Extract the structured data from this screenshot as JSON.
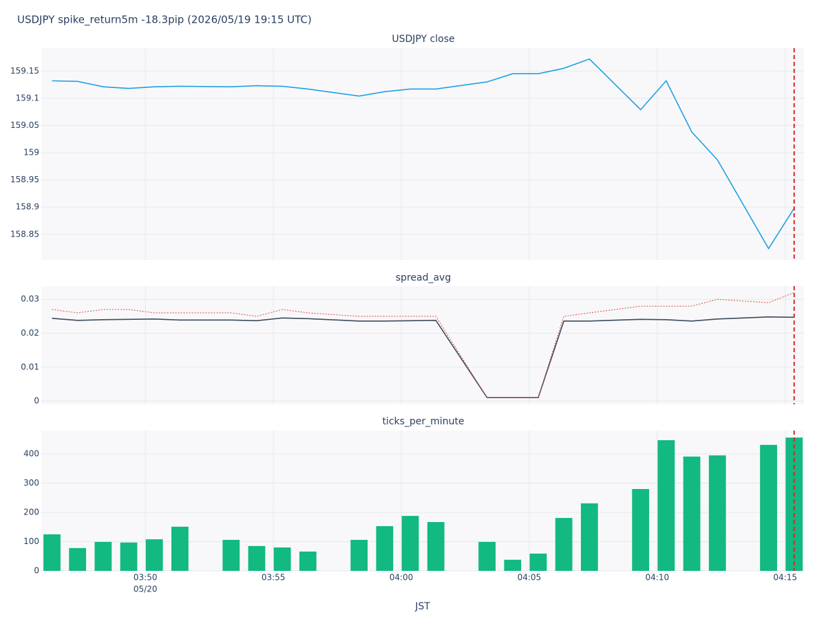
{
  "title": "USDJPY spike_return5m -18.3pip (2026/05/19 19:15 UTC)",
  "x_axis": {
    "label": "JST",
    "date_label": "05/20",
    "xlim": [
      "03:45:56",
      "04:15:44"
    ],
    "xticks": [
      {
        "value": "03:50:00",
        "label": "03:50"
      },
      {
        "value": "03:55:00",
        "label": "03:55"
      },
      {
        "value": "04:00:00",
        "label": "04:00"
      },
      {
        "value": "04:05:00",
        "label": "04:05"
      },
      {
        "value": "04:10:00",
        "label": "04:10"
      },
      {
        "value": "04:15:00",
        "label": "04:15"
      }
    ],
    "event_time": "04:15:21",
    "event_color": "#d62728"
  },
  "chart_data": [
    {
      "type": "line",
      "title": "USDJPY close",
      "x": [
        "03:46:21",
        "03:47:21",
        "03:48:21",
        "03:49:21",
        "03:50:21",
        "03:51:21",
        "03:53:21",
        "03:54:21",
        "03:55:21",
        "03:56:21",
        "03:58:21",
        "03:59:21",
        "04:00:21",
        "04:01:21",
        "04:03:21",
        "04:04:21",
        "04:05:21",
        "04:06:21",
        "04:07:21",
        "04:09:21",
        "04:10:21",
        "04:11:21",
        "04:12:21",
        "04:14:21",
        "04:15:21"
      ],
      "series": [
        {
          "color": "#1ea1e2",
          "values": [
            159.132,
            159.131,
            159.121,
            159.118,
            159.121,
            159.122,
            159.121,
            159.123,
            159.122,
            159.117,
            159.104,
            159.112,
            159.117,
            159.117,
            159.13,
            159.145,
            159.145,
            159.155,
            159.172,
            159.079,
            159.132,
            159.038,
            158.987,
            158.824,
            158.898
          ]
        }
      ],
      "ylim": [
        158.803,
        159.192
      ],
      "yticks": [
        158.85,
        158.9,
        158.95,
        159,
        159.05,
        159.1,
        159.15
      ],
      "grid": true
    },
    {
      "type": "line",
      "title": "spread_avg",
      "x": [
        "03:46:21",
        "03:47:21",
        "03:48:21",
        "03:49:21",
        "03:50:21",
        "03:51:21",
        "03:53:21",
        "03:54:21",
        "03:55:21",
        "03:56:21",
        "03:58:21",
        "03:59:21",
        "04:00:21",
        "04:01:21",
        "04:03:21",
        "04:04:21",
        "04:05:21",
        "04:06:21",
        "04:07:21",
        "04:09:21",
        "04:10:21",
        "04:11:21",
        "04:12:21",
        "04:14:21",
        "04:15:21"
      ],
      "series": [
        {
          "color": "#3d4a5c",
          "values": [
            0.0244,
            0.0238,
            0.024,
            0.0241,
            0.0242,
            0.0239,
            0.0239,
            0.0237,
            0.0245,
            0.0243,
            0.0236,
            0.0236,
            0.0237,
            0.0238,
            0.001,
            0.001,
            0.001,
            0.0236,
            0.0236,
            0.0241,
            0.024,
            0.0236,
            0.0242,
            0.0248,
            0.0247
          ]
        },
        {
          "color": "#e0463c",
          "dash": "dotted",
          "values": [
            0.027,
            0.026,
            0.027,
            0.027,
            0.026,
            0.026,
            0.026,
            0.025,
            0.027,
            0.026,
            0.025,
            0.025,
            0.025,
            0.025,
            0.001,
            0.001,
            0.001,
            0.025,
            0.026,
            0.028,
            0.028,
            0.028,
            0.03,
            0.029,
            0.032
          ]
        }
      ],
      "ylim": [
        -0.001,
        0.0339
      ],
      "yticks": [
        0,
        0.01,
        0.02,
        0.03
      ],
      "grid": true
    },
    {
      "type": "bar",
      "title": "ticks_per_minute",
      "x": [
        "03:46:21",
        "03:47:21",
        "03:48:21",
        "03:49:21",
        "03:50:21",
        "03:51:21",
        "03:53:21",
        "03:54:21",
        "03:55:21",
        "03:56:21",
        "03:58:21",
        "03:59:21",
        "04:00:21",
        "04:01:21",
        "04:03:21",
        "04:04:21",
        "04:05:21",
        "04:06:21",
        "04:07:21",
        "04:09:21",
        "04:10:21",
        "04:11:21",
        "04:12:21",
        "04:14:21",
        "04:15:21"
      ],
      "series": [
        {
          "color": "#12b981",
          "values": [
            125,
            78,
            99,
            97,
            108,
            151,
            106,
            85,
            80,
            66,
            106,
            153,
            188,
            167,
            99,
            38,
            59,
            181,
            231,
            280,
            447,
            391,
            395,
            431,
            456
          ]
        }
      ],
      "ylim": [
        0,
        480
      ],
      "yticks": [
        0,
        100,
        200,
        300,
        400
      ],
      "grid": true
    }
  ]
}
